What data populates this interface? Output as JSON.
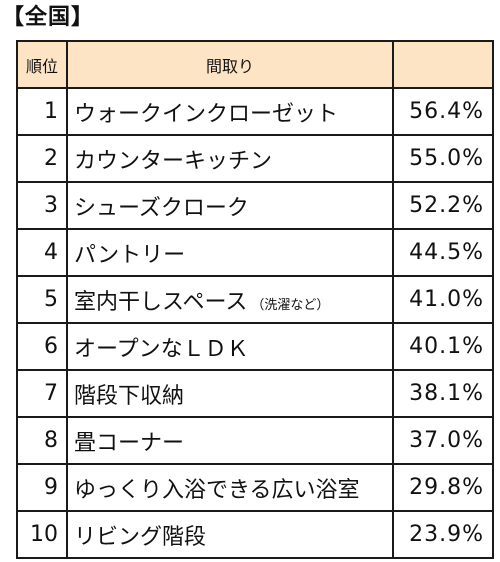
{
  "title": "【全国】",
  "table": {
    "headers": {
      "rank": "順位",
      "layout": "間取り",
      "percent": ""
    },
    "rows": [
      {
        "rank": "1",
        "layout": "ウォークインクローゼット",
        "note": "",
        "percent": "56.4%"
      },
      {
        "rank": "2",
        "layout": "カウンターキッチン",
        "note": "",
        "percent": "55.0%"
      },
      {
        "rank": "3",
        "layout": "シューズクローク",
        "note": "",
        "percent": "52.2%"
      },
      {
        "rank": "4",
        "layout": "パントリー",
        "note": "",
        "percent": "44.5%"
      },
      {
        "rank": "5",
        "layout": "室内干しスペース",
        "note": "（洗濯など）",
        "percent": "41.0%"
      },
      {
        "rank": "6",
        "layout": "オープンなＬＤＫ",
        "note": "",
        "percent": "40.1%"
      },
      {
        "rank": "7",
        "layout": "階段下収納",
        "note": "",
        "percent": "38.1%"
      },
      {
        "rank": "8",
        "layout": "畳コーナー",
        "note": "",
        "percent": "37.0%"
      },
      {
        "rank": "9",
        "layout": "ゆっくり入浴できる広い浴室",
        "note": "",
        "percent": "29.8%"
      },
      {
        "rank": "10",
        "layout": "リビング階段",
        "note": "",
        "percent": "23.9%"
      }
    ]
  },
  "colors": {
    "header_bg": "#fde4c4",
    "border": "#1a1a1a"
  }
}
